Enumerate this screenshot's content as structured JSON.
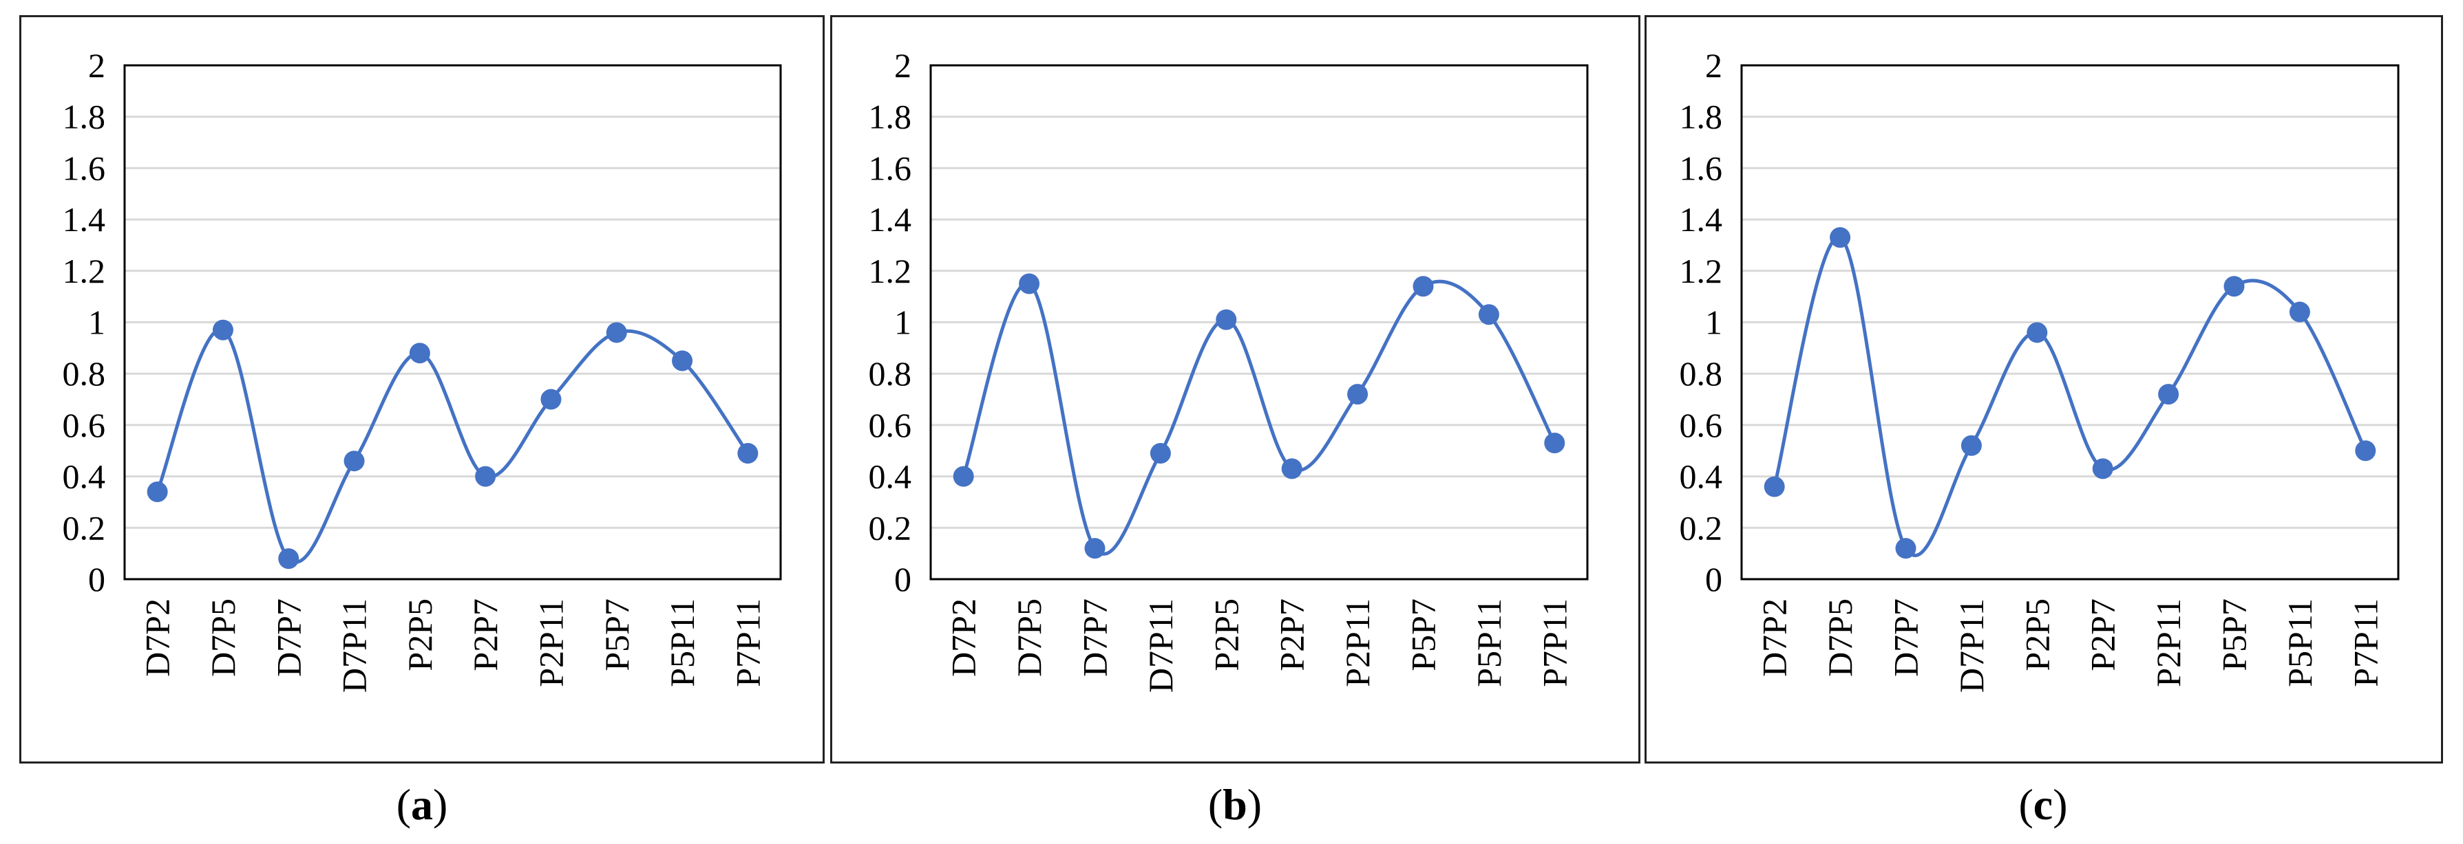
{
  "colors": {
    "series": "#4472C4",
    "grid": "#D9D9D9",
    "frame": "#000000"
  },
  "chart_data": [
    {
      "type": "line",
      "caption": "a",
      "categories": [
        "D7P2",
        "D7P5",
        "D7P7",
        "D7P11",
        "P2P5",
        "P2P7",
        "P2P11",
        "P5P7",
        "P5P11",
        "P7P11"
      ],
      "values": [
        0.34,
        0.97,
        0.08,
        0.46,
        0.88,
        0.4,
        0.7,
        0.96,
        0.85,
        0.49
      ],
      "ylim": [
        0,
        2
      ],
      "yticks": [
        "0",
        "0.2",
        "0.4",
        "0.6",
        "0.8",
        "1",
        "1.2",
        "1.4",
        "1.6",
        "1.8",
        "2"
      ],
      "grid": true,
      "smooth": true,
      "markers": true
    },
    {
      "type": "line",
      "caption": "b",
      "categories": [
        "D7P2",
        "D7P5",
        "D7P7",
        "D7P11",
        "P2P5",
        "P2P7",
        "P2P11",
        "P5P7",
        "P5P11",
        "P7P11"
      ],
      "values": [
        0.4,
        1.15,
        0.12,
        0.49,
        1.01,
        0.43,
        0.72,
        1.14,
        1.03,
        0.53
      ],
      "ylim": [
        0,
        2
      ],
      "yticks": [
        "0",
        "0.2",
        "0.4",
        "0.6",
        "0.8",
        "1",
        "1.2",
        "1.4",
        "1.6",
        "1.8",
        "2"
      ],
      "grid": true,
      "smooth": true,
      "markers": true
    },
    {
      "type": "line",
      "caption": "c",
      "categories": [
        "D7P2",
        "D7P5",
        "D7P7",
        "D7P11",
        "P2P5",
        "P2P7",
        "P2P11",
        "P5P7",
        "P5P11",
        "P7P11"
      ],
      "values": [
        0.36,
        1.33,
        0.12,
        0.52,
        0.96,
        0.43,
        0.72,
        1.14,
        1.04,
        0.5
      ],
      "ylim": [
        0,
        2
      ],
      "yticks": [
        "0",
        "0.2",
        "0.4",
        "0.6",
        "0.8",
        "1",
        "1.2",
        "1.4",
        "1.6",
        "1.8",
        "2"
      ],
      "grid": true,
      "smooth": true,
      "markers": true
    }
  ]
}
